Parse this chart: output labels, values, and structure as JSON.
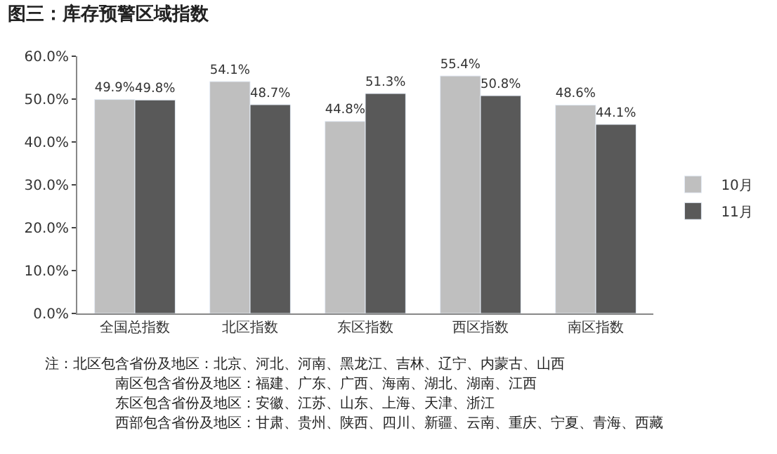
{
  "chart_data": {
    "type": "bar",
    "title": "图三：库存预警区域指数",
    "categories": [
      "全国总指数",
      "北区指数",
      "东区指数",
      "西区指数",
      "南区指数"
    ],
    "series": [
      {
        "name": "10月",
        "color": "#bfbfbf",
        "values": [
          49.9,
          54.1,
          44.8,
          55.4,
          48.6
        ],
        "value_labels": [
          "49.9%",
          "54.1%",
          "44.8%",
          "55.4%",
          "48.6%"
        ]
      },
      {
        "name": "11月",
        "color": "#595959",
        "values": [
          49.8,
          48.7,
          51.3,
          50.8,
          44.1
        ],
        "value_labels": [
          "49.8%",
          "48.7%",
          "51.3%",
          "50.8%",
          "44.1%"
        ]
      }
    ],
    "ylim": [
      0,
      60
    ],
    "yticks": [
      {
        "value": 0,
        "label": "0.0%"
      },
      {
        "value": 10,
        "label": "10.0%"
      },
      {
        "value": 20,
        "label": "20.0%"
      },
      {
        "value": 30,
        "label": "30.0%"
      },
      {
        "value": 40,
        "label": "40.0%"
      },
      {
        "value": 50,
        "label": "50.0%"
      },
      {
        "value": 60,
        "label": "60.0%"
      }
    ],
    "legend": "right",
    "annotations": [
      "注：北区包含省份及地区：北京、河北、河南、黑龙江、吉林、辽宁、内蒙古、山西",
      "南区包含省份及地区：福建、广东、广西、海南、湖北、湖南、江西",
      "东区包含省份及地区：安徽、江苏、山东、上海、天津、浙江",
      "西部包含省份及地区：甘肃、贵州、陕西、四川、新疆、云南、重庆、宁夏、青海、西藏"
    ]
  }
}
